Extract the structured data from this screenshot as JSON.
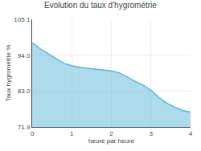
{
  "chart_data": {
    "type": "area",
    "title": "Evolution du taux d'hygrométrie",
    "xlabel": "heure par heure",
    "ylabel": "Taux hygrométrie %",
    "x": [
      0.0,
      0.08,
      0.2,
      0.4,
      0.6,
      0.8,
      1.0,
      1.1,
      1.2,
      1.4,
      1.6,
      1.8,
      2.0,
      2.2,
      2.4,
      2.6,
      2.8,
      3.0,
      3.2,
      3.4,
      3.6,
      3.8,
      4.0
    ],
    "values": [
      97.8,
      97.2,
      96.0,
      94.5,
      93.0,
      91.5,
      90.8,
      90.5,
      90.3,
      90.0,
      89.7,
      89.5,
      89.2,
      88.6,
      87.2,
      86.0,
      84.8,
      83.2,
      81.0,
      79.2,
      78.0,
      77.0,
      76.5
    ],
    "color": "#5ab8d8",
    "xlim": [
      0,
      4
    ],
    "xticks": [
      0,
      1,
      2,
      3,
      4
    ],
    "ylim": [
      71.9,
      105.1
    ],
    "yticks": [
      71.9,
      {
        "value": 83.0,
        "label": "83.0"
      },
      {
        "value": 94.0,
        "label": "94.0"
      },
      105.1
    ],
    "grid": true
  }
}
